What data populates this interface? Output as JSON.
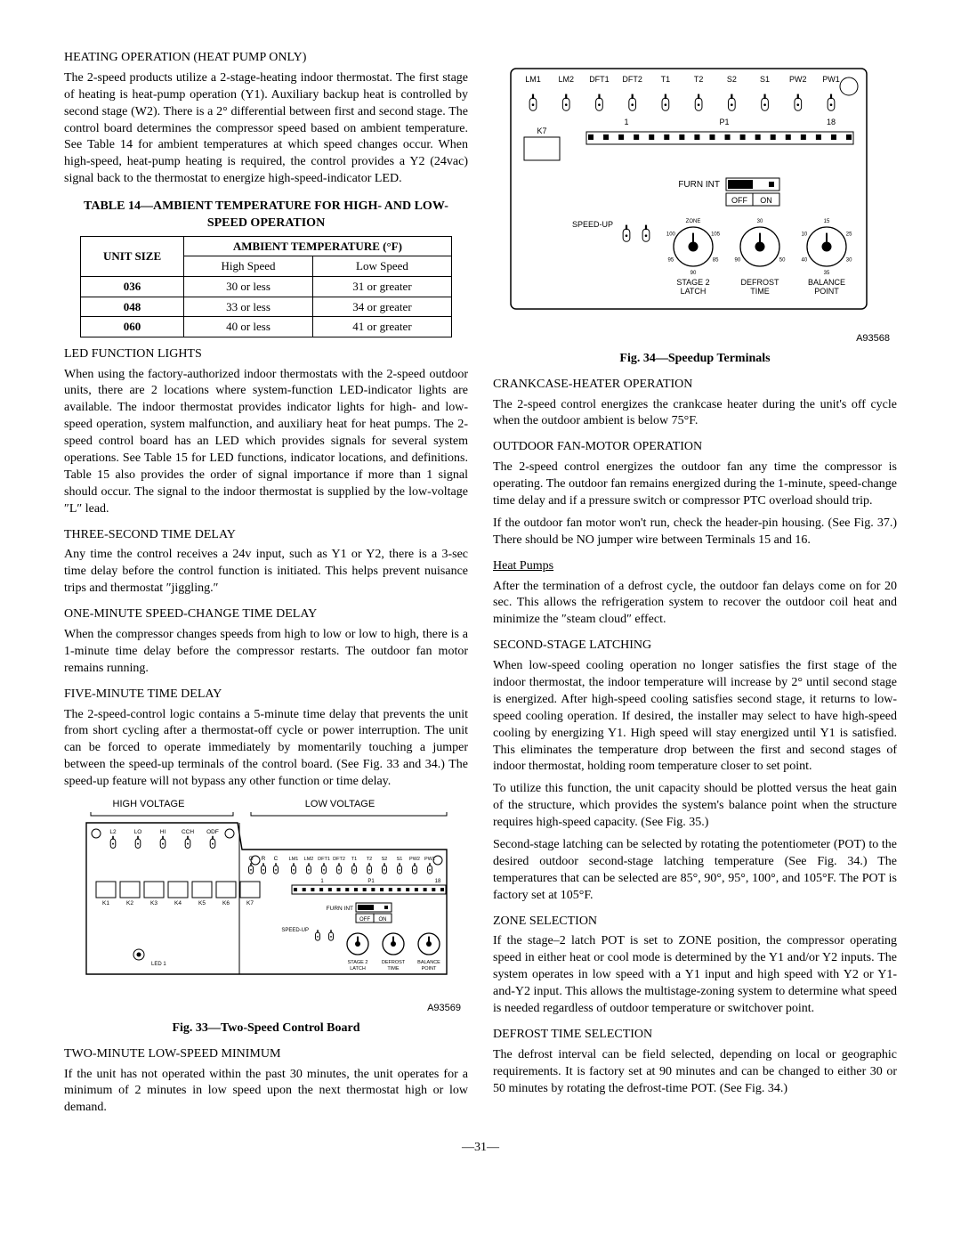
{
  "left": {
    "heating_op_heading": "HEATING OPERATION (HEAT PUMP ONLY)",
    "heating_op_body": "The 2-speed products utilize a 2-stage-heating indoor thermostat. The first stage of heating is heat-pump operation (Y1). Auxiliary backup heat is controlled by second stage (W2). There is a 2° differential between first and second stage. The control board determines the compressor speed based on ambient temperature. See Table 14 for ambient temperatures at which speed changes occur. When high-speed, heat-pump heating is required, the control provides a Y2 (24vac) signal back to the thermostat to energize high-speed-indicator LED.",
    "table14_title": "TABLE 14—AMBIENT TEMPERATURE FOR HIGH- AND LOW-SPEED OPERATION",
    "table14": {
      "col_unit": "UNIT SIZE",
      "col_ambient": "AMBIENT TEMPERATURE (°F)",
      "col_high": "High Speed",
      "col_low": "Low Speed",
      "rows": [
        {
          "size": "036",
          "high": "30 or less",
          "low": "31 or greater"
        },
        {
          "size": "048",
          "high": "33 or less",
          "low": "34 or greater"
        },
        {
          "size": "060",
          "high": "40 or less",
          "low": "41 or greater"
        }
      ]
    },
    "led_heading": "LED FUNCTION LIGHTS",
    "led_body": "When using the factory-authorized indoor thermostats with the 2-speed outdoor units, there are 2 locations where system-function LED-indicator lights are available. The indoor thermostat provides indicator lights for high- and low-speed operation, system malfunction, and auxiliary heat for heat pumps. The 2-speed control board has an LED which provides signals for several system operations. See Table 15 for LED functions, indicator locations, and definitions. Table 15 also provides the order of signal importance if more than 1 signal should occur. The signal to the indoor thermostat is supplied by the low-voltage ″L″ lead.",
    "three_sec_heading": "THREE-SECOND TIME DELAY",
    "three_sec_body": "Any time the control receives a 24v input, such as Y1 or Y2, there is a 3-sec time delay before the control function is initiated. This helps prevent nuisance trips and thermostat ″jiggling.″",
    "one_min_heading": "ONE-MINUTE SPEED-CHANGE TIME DELAY",
    "one_min_body": "When the compressor changes speeds from high to low or low to high, there is a 1-minute time delay before the compressor restarts. The outdoor fan motor remains running.",
    "five_min_heading": "FIVE-MINUTE TIME DELAY",
    "five_min_body": "The 2-speed-control logic contains a 5-minute time delay that prevents the unit from short cycling after a thermostat-off cycle or power interruption. The unit can be forced to operate immediately by momentarily touching a jumper between the speed-up terminals of the control board. (See Fig. 33 and 34.) The speed-up feature will not bypass any other function or time delay.",
    "fig33_high_v": "HIGH VOLTAGE",
    "fig33_low_v": "LOW VOLTAGE",
    "fig33_terms_left": [
      "L2",
      "LO",
      "HI",
      "CCH",
      "ODF"
    ],
    "fig33_terms_right": [
      "LM1",
      "LM2",
      "DFT1",
      "DFT2",
      "T1",
      "T2",
      "S2",
      "S1",
      "PW2",
      "PW1"
    ],
    "fig33_relays": [
      "K1",
      "K2",
      "K3",
      "K4",
      "K5",
      "K6",
      "K7"
    ],
    "fig33_furn": "FURN INT",
    "fig33_off": "OFF",
    "fig33_on": "ON",
    "fig33_speedup": "SPEED-UP",
    "fig33_stage2": "STAGE 2\nLATCH",
    "fig33_defrost": "DEFROST\nTIME",
    "fig33_balance": "BALANCE\nPOINT",
    "fig33_led1": "LED 1",
    "fig33_code": "A93569",
    "fig33_caption": "Fig. 33—Two-Speed Control Board",
    "two_min_heading": "TWO-MINUTE LOW-SPEED MINIMUM",
    "two_min_body": "If the unit has not operated within the past 30 minutes, the unit operates for a minimum of 2 minutes in low speed upon the next thermostat high or low demand."
  },
  "right": {
    "fig34_terms": [
      "LM1",
      "LM2",
      "DFT1",
      "DFT2",
      "T1",
      "T2",
      "S2",
      "S1",
      "PW2",
      "PW1"
    ],
    "fig34_num1": "1",
    "fig34_p1": "P1",
    "fig34_num18": "18",
    "fig34_k7": "K7",
    "fig34_furn": "FURN INT",
    "fig34_off": "OFF",
    "fig34_on": "ON",
    "fig34_speedup": "SPEED-UP",
    "fig34_stage2": "STAGE 2\nLATCH",
    "fig34_defrost": "DEFROST\nTIME",
    "fig34_balance": "BALANCE\nPOINT",
    "fig34_dial_stage2": [
      "ZONE",
      "105",
      "85",
      "90",
      "95",
      "100"
    ],
    "fig34_dial_defrost": [
      "30",
      "50",
      "90"
    ],
    "fig34_dial_balance": [
      "15",
      "25",
      "30",
      "35",
      "40",
      "10"
    ],
    "fig34_code": "A93568",
    "fig34_caption": "Fig. 34—Speedup Terminals",
    "crank_heading": "CRANKCASE-HEATER OPERATION",
    "crank_body": "The 2-speed control energizes the crankcase heater during the unit's off cycle when the outdoor ambient is below 75°F.",
    "fan_heading": "OUTDOOR FAN-MOTOR OPERATION",
    "fan_body1": "The 2-speed control energizes the outdoor fan any time the compressor is operating. The outdoor fan remains energized during the 1-minute, speed-change time delay and if a pressure switch or compressor PTC overload should trip.",
    "fan_body2": "If the outdoor fan motor won't run, check the header-pin housing. (See Fig. 37.) There should be NO jumper wire between Terminals 15 and 16.",
    "heatpumps_heading": "Heat Pumps",
    "heatpumps_body": "After the termination of a defrost cycle, the outdoor fan delays come on for 20 sec. This allows the refrigeration system to recover the outdoor coil heat and minimize the ″steam cloud″ effect.",
    "ssl_heading": "SECOND-STAGE LATCHING",
    "ssl_body1": "When low-speed cooling operation no longer satisfies the first stage of the indoor thermostat, the indoor temperature will increase by 2° until second stage is energized. After high-speed cooling satisfies second stage, it returns to low-speed cooling operation. If desired, the installer may select to have high-speed cooling by energizing Y1. High speed will stay energized until Y1 is satisfied. This eliminates the temperature drop between the first and second stages of indoor thermostat, holding room temperature closer to set point.",
    "ssl_body2": "To utilize this function, the unit capacity should be plotted versus the heat gain of the structure, which provides the system's balance point when the structure requires high-speed capacity. (See Fig. 35.)",
    "ssl_body3": "Second-stage latching can be selected by rotating the potentiometer (POT) to the desired outdoor second-stage latching temperature (See Fig. 34.) The temperatures that can be selected are 85°, 90°, 95°, 100°, and 105°F. The POT is factory set at 105°F.",
    "zone_heading": "ZONE SELECTION",
    "zone_body": "If the stage–2 latch POT is set to ZONE position, the compressor operating speed in either heat or cool mode is determined by the Y1 and/or Y2 inputs. The system operates in low speed with a Y1 input and high speed with Y2 or Y1-and-Y2 input. This allows the multistage-zoning system to determine what speed is needed regardless of outdoor temperature or switchover point.",
    "defrost_heading": "DEFROST TIME SELECTION",
    "defrost_body": "The defrost interval can be field selected, depending on local or geographic requirements. It is factory set at 90 minutes and can be changed to either 30 or 50 minutes by rotating the defrost-time POT. (See Fig. 34.)"
  },
  "page_num": "—31—"
}
